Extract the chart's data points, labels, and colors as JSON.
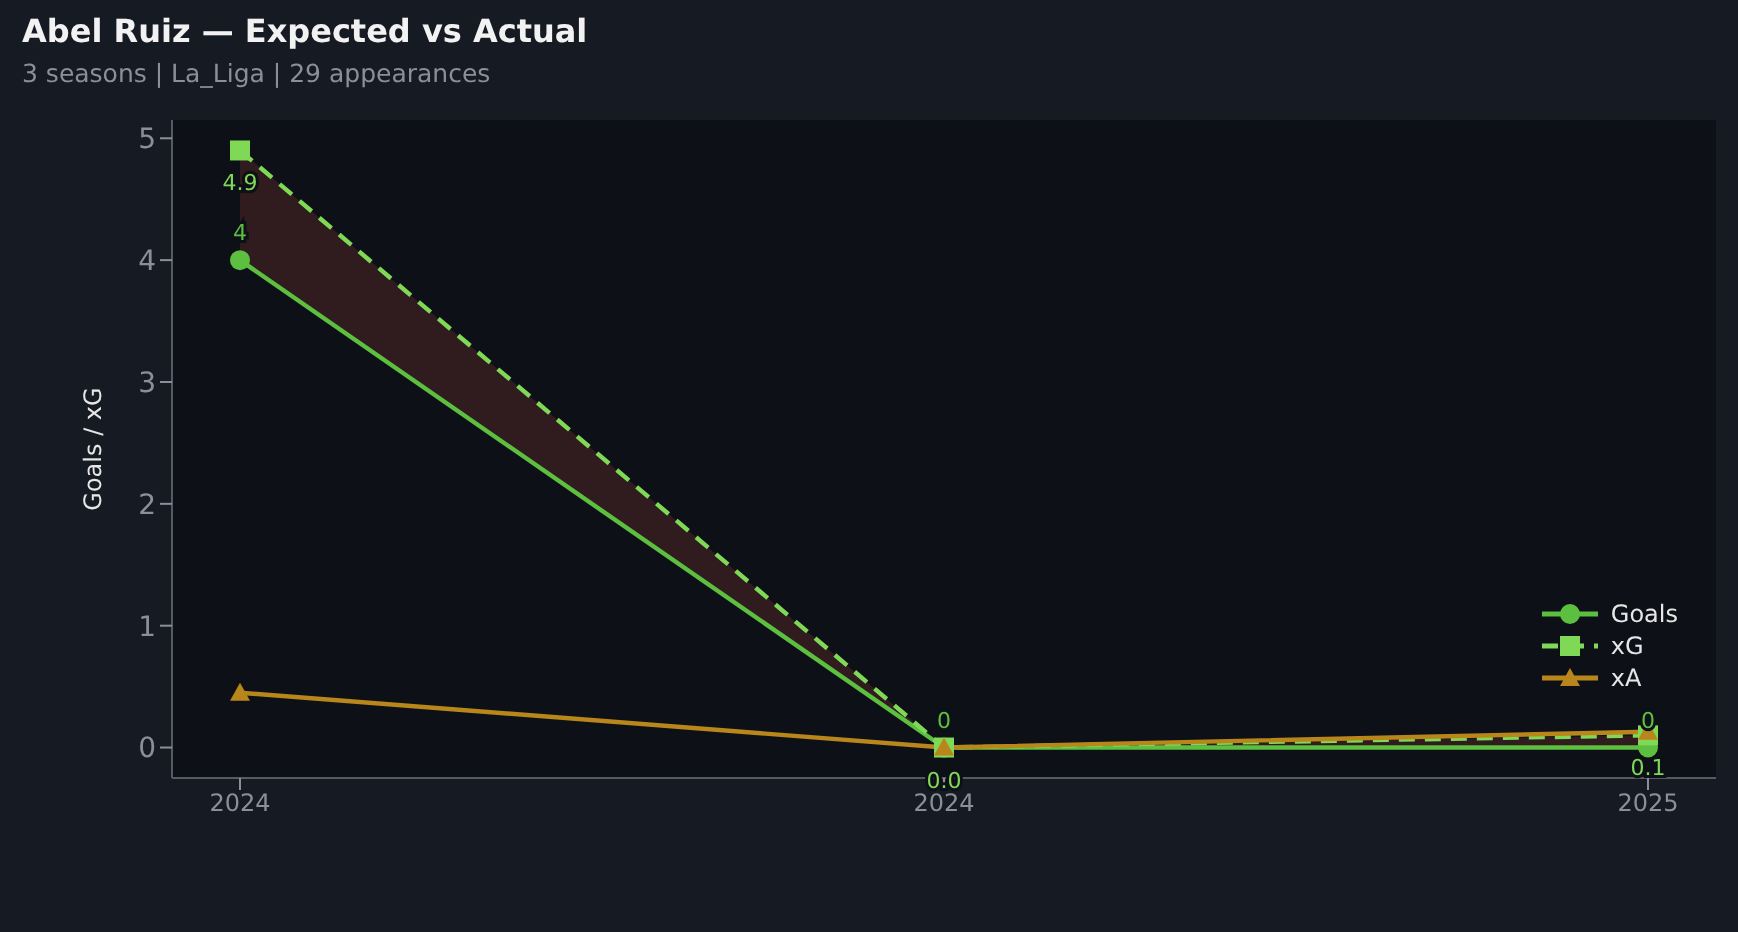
{
  "chart_data": {
    "type": "line",
    "title": "Abel Ruiz — Expected vs Actual",
    "subtitle": "3 seasons | La_Liga | 29 appearances",
    "ylabel": "Goals / xG",
    "categories": [
      "2024",
      "2024",
      "2025"
    ],
    "series": [
      {
        "name": "Goals",
        "color": "#5cbf3f",
        "values": [
          4,
          0,
          0
        ],
        "marker": "circle",
        "line_style": "solid",
        "value_labels": [
          "4",
          "0",
          "0"
        ]
      },
      {
        "name": "xG",
        "color": "#7fd957",
        "values": [
          4.9,
          0.0,
          0.1
        ],
        "marker": "square",
        "line_style": "dashed",
        "value_labels": [
          "4.9",
          "0.0",
          "0.1"
        ],
        "lower": [
          4,
          0,
          0
        ],
        "upper": [
          4.9,
          0.0,
          0.1
        ]
      },
      {
        "name": "xA",
        "color": "#b8861b",
        "values": [
          0.45,
          0.0,
          0.13
        ],
        "marker": "triangle",
        "line_style": "solid"
      }
    ],
    "ylim": [
      -0.25,
      5.15
    ],
    "yticks": [
      0,
      1,
      2,
      3,
      4,
      5
    ],
    "grid": false,
    "legend": "bottom right"
  }
}
